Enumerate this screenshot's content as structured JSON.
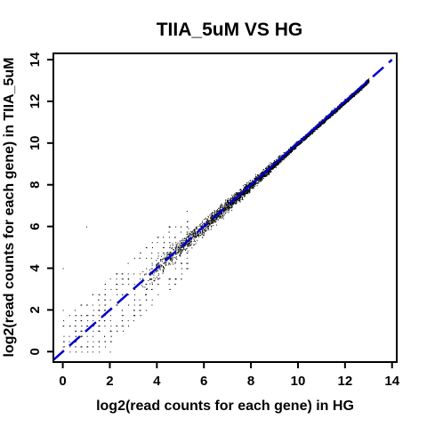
{
  "chart_data": {
    "type": "scatter",
    "title": "TIIA_5uM VS HG",
    "xlabel": "log2(read counts for each gene) in HG",
    "ylabel": "log2(read counts for each gene) in TIIA_5uM",
    "xlim": [
      -0.4,
      14.2
    ],
    "ylim": [
      -0.5,
      14.3
    ],
    "xticks": [
      "0",
      "2",
      "4",
      "6",
      "8",
      "10",
      "12",
      "14"
    ],
    "yticks": [
      "0",
      "2",
      "4",
      "6",
      "8",
      "10",
      "12",
      "14"
    ],
    "x_tick_values": [
      0,
      2,
      4,
      6,
      8,
      10,
      12,
      14
    ],
    "y_tick_values": [
      0,
      2,
      4,
      6,
      8,
      10,
      12,
      14
    ],
    "grid": false,
    "point_color": "#000000",
    "reference_line": {
      "style": "dashed",
      "color": "#0000cc",
      "from": [
        -0.4,
        -0.4
      ],
      "to": [
        14,
        14
      ]
    },
    "fit_line": {
      "style": "solid",
      "color": "#0000cc",
      "from": [
        7.5,
        7.5
      ],
      "to": [
        12.6,
        12.6
      ]
    },
    "point_cloud": {
      "center_range": [
        4,
        13
      ],
      "dense_range": [
        7,
        12
      ],
      "note_points": [
        [
          0,
          2
        ],
        [
          1,
          6
        ],
        [
          0,
          4
        ],
        [
          2,
          0
        ]
      ]
    }
  }
}
